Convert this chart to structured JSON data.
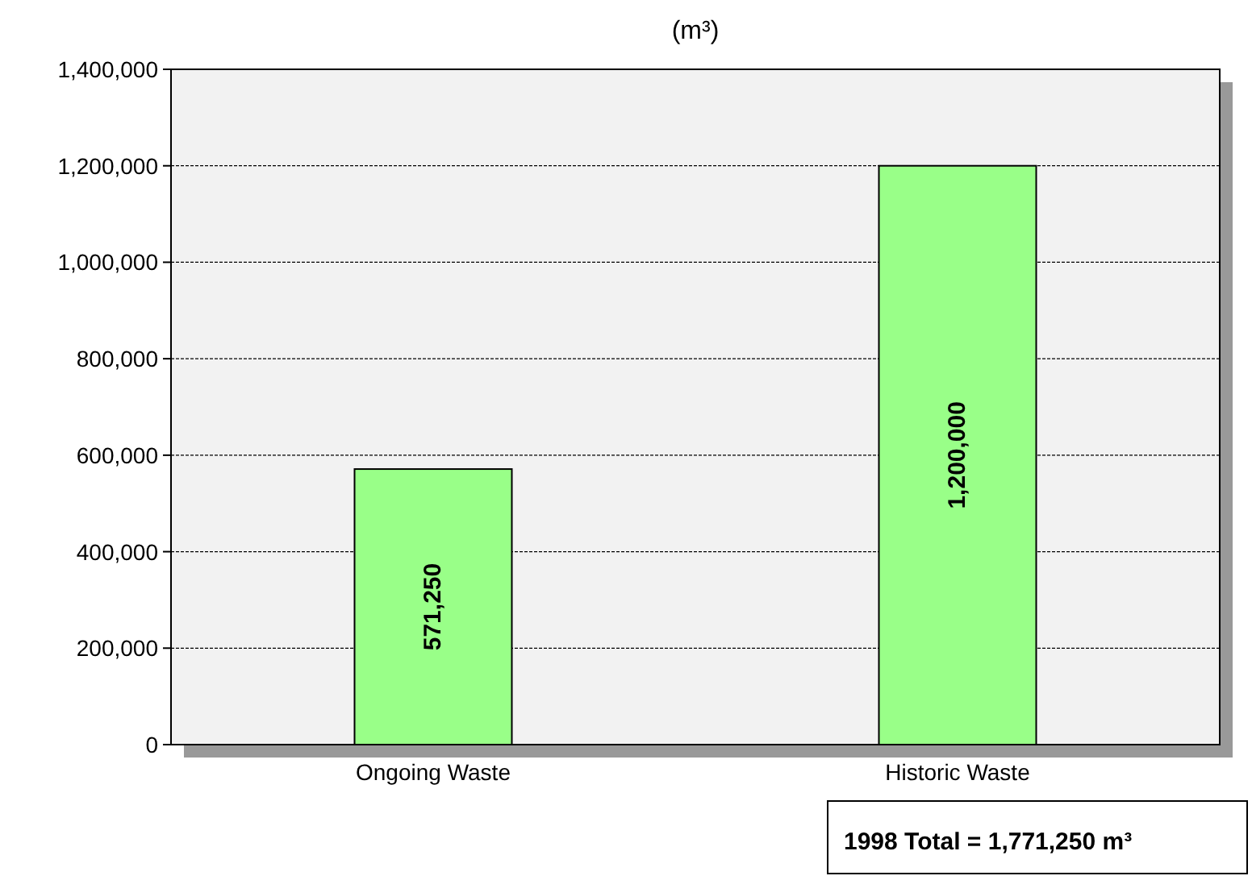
{
  "chart_data": {
    "type": "bar",
    "title": "(m³)",
    "categories": [
      "Ongoing Waste",
      "Historic Waste"
    ],
    "values": [
      571250,
      1200000
    ],
    "color": "#99ff88",
    "value_labels": [
      "571,250",
      "1,200,000"
    ],
    "ylim": [
      0,
      1400000
    ],
    "yticks": [
      0,
      {
        "value": 200000,
        "label": "200,000"
      },
      {
        "value": 400000,
        "label": "400,000"
      },
      {
        "value": 600000,
        "label": "600,000"
      },
      {
        "value": 800000,
        "label": "800,000"
      },
      {
        "value": 1000000,
        "label": "1,000,000"
      },
      {
        "value": 1200000,
        "label": "1,200,000"
      },
      {
        "value": 1400000,
        "label": "1,400,000"
      }
    ],
    "grid": "y",
    "annotations": [
      "1998 Total = 1,771,250 m³"
    ]
  }
}
